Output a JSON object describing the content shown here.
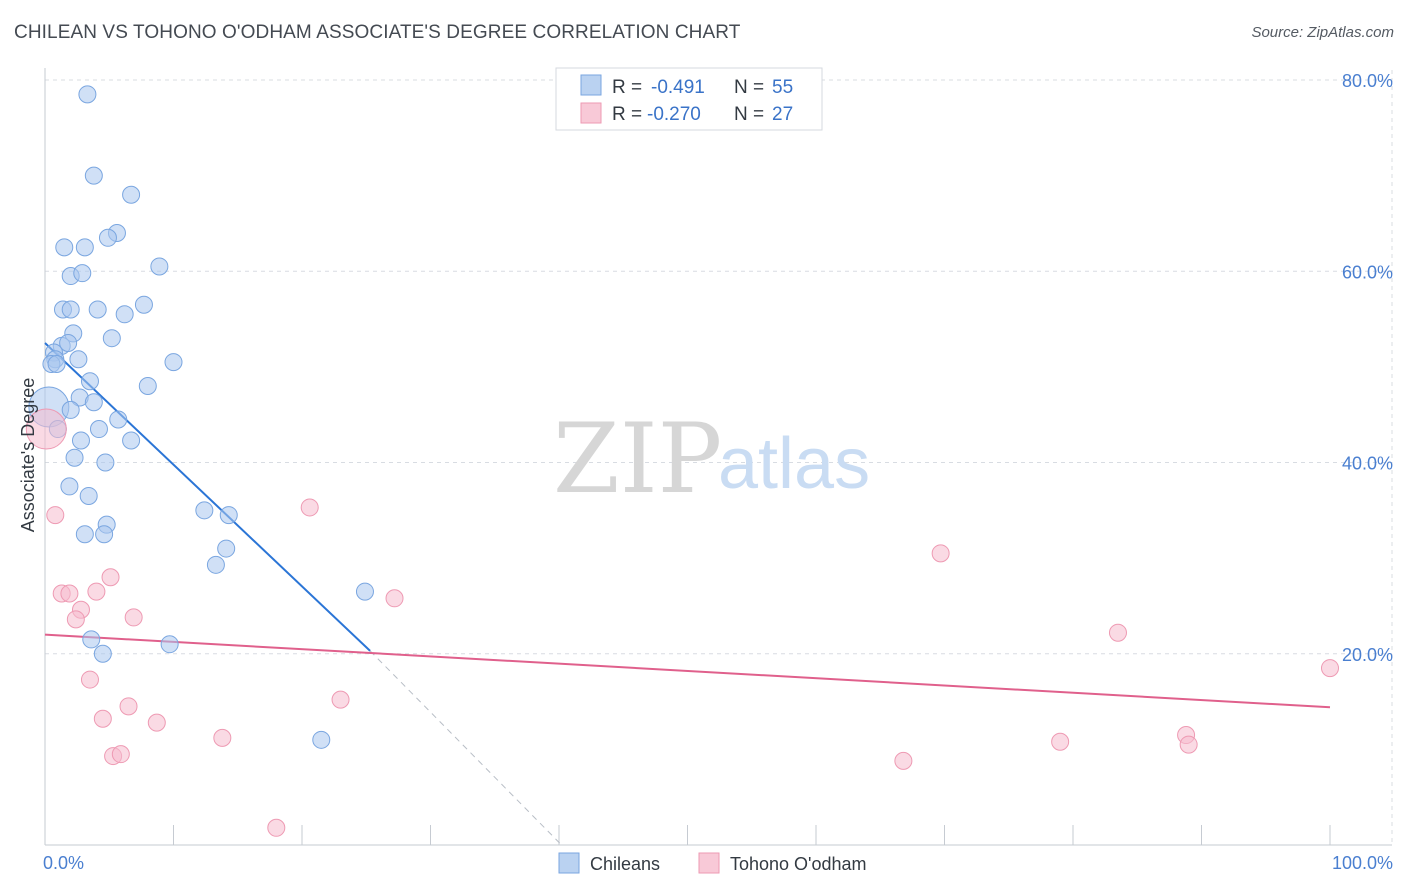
{
  "title": "CHILEAN VS TOHONO O'ODHAM ASSOCIATE'S DEGREE CORRELATION CHART",
  "source": "Source: ZipAtlas.com",
  "watermark": {
    "zip": "ZIP",
    "atlas": "atlas"
  },
  "colors": {
    "chileans_fill": "#a9c7ee",
    "chileans_stroke": "#7aa6e0",
    "chileans_line": "#2b75d6",
    "tohono_fill": "#f6bccd",
    "tohono_stroke": "#ee9ab3",
    "tohono_line": "#e0608c",
    "tick_text": "#4a7fd0",
    "grid": "#d8dce2"
  },
  "legend": {
    "rows": [
      {
        "r_label": "R =",
        "r_value": "-0.491",
        "n_label": "N =",
        "n_value": "55"
      },
      {
        "r_label": "R =",
        "r_value": "-0.270",
        "n_label": "N =",
        "n_value": "27"
      }
    ]
  },
  "bottom_legend": [
    "Chileans",
    "Tohono O'odham"
  ],
  "chart_data": {
    "type": "scatter",
    "title": "CHILEAN VS TOHONO O'ODHAM ASSOCIATE'S DEGREE CORRELATION CHART",
    "xlabel": "",
    "ylabel": "Associate's Degree",
    "xlim": [
      0,
      100
    ],
    "ylim": [
      0,
      80
    ],
    "x_tick_labels": [
      "0.0%",
      "100.0%"
    ],
    "y_ticks": [
      20,
      40,
      60,
      80
    ],
    "y_tick_labels": [
      "20.0%",
      "40.0%",
      "60.0%",
      "80.0%"
    ],
    "grid": true,
    "legend_position": "top-center",
    "series": [
      {
        "name": "Chileans",
        "r": -0.491,
        "n": 55,
        "trend": {
          "x0": 0,
          "y0": 52.5,
          "x1": 25.3,
          "y1": 20.3
        },
        "trend_dashed_extension": {
          "x0": 25.3,
          "y0": 20.3,
          "x1": 40.2,
          "y1": 0
        },
        "points": [
          {
            "x": 3.3,
            "y": 78.5
          },
          {
            "x": 3.8,
            "y": 70.0
          },
          {
            "x": 6.7,
            "y": 68.0
          },
          {
            "x": 5.6,
            "y": 64.0
          },
          {
            "x": 4.9,
            "y": 63.5
          },
          {
            "x": 1.5,
            "y": 62.5
          },
          {
            "x": 3.1,
            "y": 62.5
          },
          {
            "x": 8.9,
            "y": 60.5
          },
          {
            "x": 2.0,
            "y": 59.5
          },
          {
            "x": 2.9,
            "y": 59.8
          },
          {
            "x": 7.7,
            "y": 56.5
          },
          {
            "x": 1.4,
            "y": 56.0
          },
          {
            "x": 2.0,
            "y": 56.0
          },
          {
            "x": 4.1,
            "y": 56.0
          },
          {
            "x": 6.2,
            "y": 55.5
          },
          {
            "x": 2.2,
            "y": 53.5
          },
          {
            "x": 5.2,
            "y": 53.0
          },
          {
            "x": 1.3,
            "y": 52.2
          },
          {
            "x": 1.8,
            "y": 52.5
          },
          {
            "x": 0.7,
            "y": 51.5
          },
          {
            "x": 0.8,
            "y": 50.8
          },
          {
            "x": 2.6,
            "y": 50.8
          },
          {
            "x": 0.5,
            "y": 50.3
          },
          {
            "x": 0.9,
            "y": 50.3
          },
          {
            "x": 10.0,
            "y": 50.5
          },
          {
            "x": 3.5,
            "y": 48.5
          },
          {
            "x": 8.0,
            "y": 48.0
          },
          {
            "x": 2.7,
            "y": 46.8
          },
          {
            "x": 3.8,
            "y": 46.3
          },
          {
            "x": 0.3,
            "y": 45.8,
            "size": "large"
          },
          {
            "x": 2.0,
            "y": 45.5
          },
          {
            "x": 5.7,
            "y": 44.5
          },
          {
            "x": 1.0,
            "y": 43.5
          },
          {
            "x": 4.2,
            "y": 43.5
          },
          {
            "x": 2.8,
            "y": 42.3
          },
          {
            "x": 6.7,
            "y": 42.3
          },
          {
            "x": 2.3,
            "y": 40.5
          },
          {
            "x": 4.7,
            "y": 40.0
          },
          {
            "x": 1.9,
            "y": 37.5
          },
          {
            "x": 3.4,
            "y": 36.5
          },
          {
            "x": 12.4,
            "y": 35.0
          },
          {
            "x": 14.3,
            "y": 34.5
          },
          {
            "x": 4.8,
            "y": 33.5
          },
          {
            "x": 3.1,
            "y": 32.5
          },
          {
            "x": 4.6,
            "y": 32.5
          },
          {
            "x": 14.1,
            "y": 31.0
          },
          {
            "x": 13.3,
            "y": 29.3
          },
          {
            "x": 24.9,
            "y": 26.5
          },
          {
            "x": 3.6,
            "y": 21.5
          },
          {
            "x": 9.7,
            "y": 21.0
          },
          {
            "x": 4.5,
            "y": 20.0
          },
          {
            "x": 21.5,
            "y": 11.0
          }
        ]
      },
      {
        "name": "Tohono O'odham",
        "r": -0.27,
        "n": 27,
        "trend": {
          "x0": 0,
          "y0": 22.0,
          "x1": 100,
          "y1": 14.4
        },
        "points": [
          {
            "x": 0.1,
            "y": 43.5,
            "size": "large"
          },
          {
            "x": 0.8,
            "y": 34.5
          },
          {
            "x": 20.6,
            "y": 35.3
          },
          {
            "x": 5.1,
            "y": 28.0
          },
          {
            "x": 1.3,
            "y": 26.3
          },
          {
            "x": 1.9,
            "y": 26.3
          },
          {
            "x": 4.0,
            "y": 26.5
          },
          {
            "x": 27.2,
            "y": 25.8
          },
          {
            "x": 2.8,
            "y": 24.6
          },
          {
            "x": 2.4,
            "y": 23.6
          },
          {
            "x": 6.9,
            "y": 23.8
          },
          {
            "x": 69.7,
            "y": 30.5
          },
          {
            "x": 83.5,
            "y": 22.2
          },
          {
            "x": 3.5,
            "y": 17.3
          },
          {
            "x": 23.0,
            "y": 15.2
          },
          {
            "x": 6.5,
            "y": 14.5
          },
          {
            "x": 4.5,
            "y": 13.2
          },
          {
            "x": 8.7,
            "y": 12.8
          },
          {
            "x": 13.8,
            "y": 11.2
          },
          {
            "x": 5.3,
            "y": 9.3
          },
          {
            "x": 5.9,
            "y": 9.5
          },
          {
            "x": 66.8,
            "y": 8.8
          },
          {
            "x": 79.0,
            "y": 10.8
          },
          {
            "x": 88.8,
            "y": 11.5
          },
          {
            "x": 89.0,
            "y": 10.5
          },
          {
            "x": 100.0,
            "y": 18.5
          },
          {
            "x": 18.0,
            "y": 1.8
          }
        ]
      }
    ]
  }
}
